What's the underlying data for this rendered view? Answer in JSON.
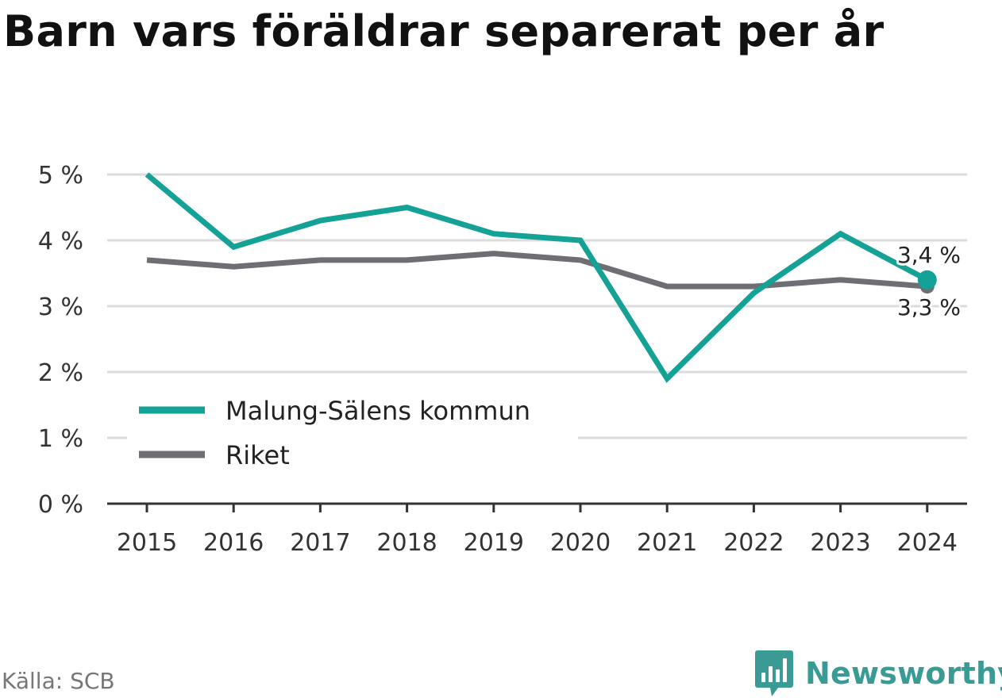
{
  "title": "Barn vars föräldrar separerat per år",
  "source": "Källa: SCB",
  "brand": {
    "name": "Newsworthy",
    "icon": "bar-chart-bubble-icon",
    "color": "#3a9a94"
  },
  "chart_data": {
    "type": "line",
    "title": "Barn vars föräldrar separerat per år",
    "x": [
      "2015",
      "2016",
      "2017",
      "2018",
      "2019",
      "2020",
      "2021",
      "2022",
      "2023",
      "2024"
    ],
    "ylim": [
      0,
      5
    ],
    "yticks": [
      "0 %",
      "1 %",
      "2 %",
      "3 %",
      "4 %",
      "5 %"
    ],
    "grid": true,
    "legend_position": "bottom-left",
    "series": [
      {
        "name": "Malung-Sälens kommun",
        "color": "#14a196",
        "values": [
          5.0,
          3.9,
          4.3,
          4.5,
          4.1,
          4.0,
          1.9,
          3.2,
          4.1,
          3.4
        ],
        "end_label": "3,4 %"
      },
      {
        "name": "Riket",
        "color": "#6e6e74",
        "values": [
          3.7,
          3.6,
          3.7,
          3.7,
          3.8,
          3.7,
          3.3,
          3.3,
          3.4,
          3.3
        ],
        "end_label": "3,3 %"
      }
    ]
  }
}
